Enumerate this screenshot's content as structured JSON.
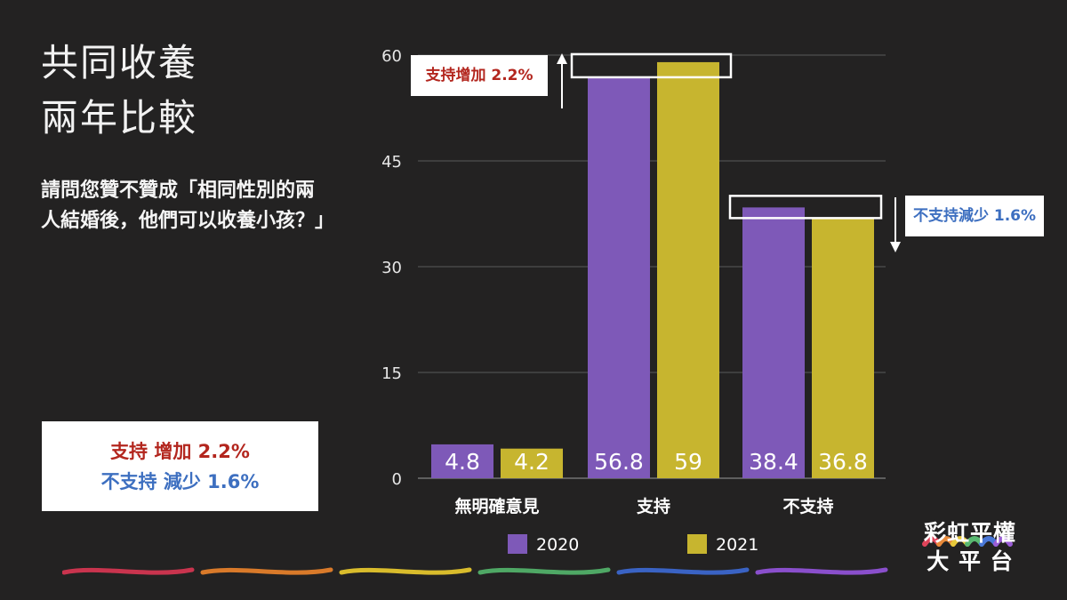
{
  "title_lines": [
    "共同收養",
    "兩年比較"
  ],
  "question": "請問您贊不贊成「相同性別的兩人結婚後，他們可以收養小孩？」",
  "summary": {
    "support_line": "支持 增加 2.2%",
    "oppose_line": "不支持 減少 1.6%"
  },
  "callouts": {
    "support_increase": "支持增加 2.2%",
    "oppose_decrease": "不支持減少 1.6%"
  },
  "logo": {
    "line1": "彩虹平權",
    "line2": "大 平 台"
  },
  "colors": {
    "series_2020": "#7e59b8",
    "series_2021": "#c7b52f",
    "increase": "#b3261e",
    "decrease": "#3d6fc0",
    "background": "#232222"
  },
  "chart_data": {
    "type": "bar",
    "categories": [
      "無明確意見",
      "支持",
      "不支持"
    ],
    "series": [
      {
        "name": "2020",
        "values": [
          4.8,
          56.8,
          38.4
        ],
        "labels": [
          "4.8",
          "56.8",
          "38.4"
        ]
      },
      {
        "name": "2021",
        "values": [
          4.2,
          59,
          36.8
        ],
        "labels": [
          "4.2",
          "59",
          "36.8"
        ]
      }
    ],
    "yticks": [
      "0",
      "15",
      "30",
      "45",
      "60"
    ],
    "ylim": [
      0,
      60
    ],
    "grid": true,
    "legend": "bottom"
  }
}
